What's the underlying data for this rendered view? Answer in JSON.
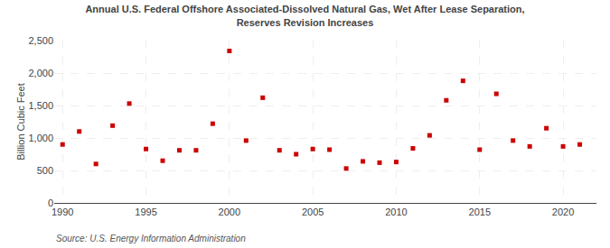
{
  "chart_data": {
    "type": "scatter",
    "title": "Annual U.S. Federal Offshore Associated-Dissolved Natural Gas, Wet After Lease Separation,\nReserves Revision Increases",
    "ylabel": "Billion Cubic Feet",
    "annotations": [
      "Source: U.S. Energy Information Administration"
    ],
    "x": [
      1990,
      1991,
      1992,
      1993,
      1994,
      1995,
      1996,
      1997,
      1998,
      1999,
      2000,
      2001,
      2002,
      2003,
      2004,
      2005,
      2006,
      2007,
      2008,
      2009,
      2010,
      2011,
      2012,
      2013,
      2014,
      2015,
      2016,
      2017,
      2018,
      2019,
      2020,
      2021
    ],
    "values": [
      900,
      1100,
      600,
      1190,
      1530,
      830,
      650,
      810,
      810,
      1220,
      2340,
      960,
      1620,
      810,
      750,
      830,
      820,
      530,
      640,
      620,
      630,
      840,
      1040,
      1580,
      1880,
      820,
      1680,
      960,
      870,
      1150,
      870,
      900
    ],
    "color": "#cc0000",
    "marker": "square",
    "xlim": [
      1989.5,
      2022
    ],
    "xticks": [
      1990,
      1995,
      2000,
      2005,
      2010,
      2015,
      2020
    ],
    "ylim": [
      0,
      2500
    ],
    "yticks": [
      0,
      500,
      {
        "value": 1000,
        "label": "1,000"
      },
      {
        "value": 1500,
        "label": "1,500"
      },
      {
        "value": 2000,
        "label": "2,000"
      },
      {
        "value": 2500,
        "label": "2,500"
      }
    ],
    "grid": true
  }
}
